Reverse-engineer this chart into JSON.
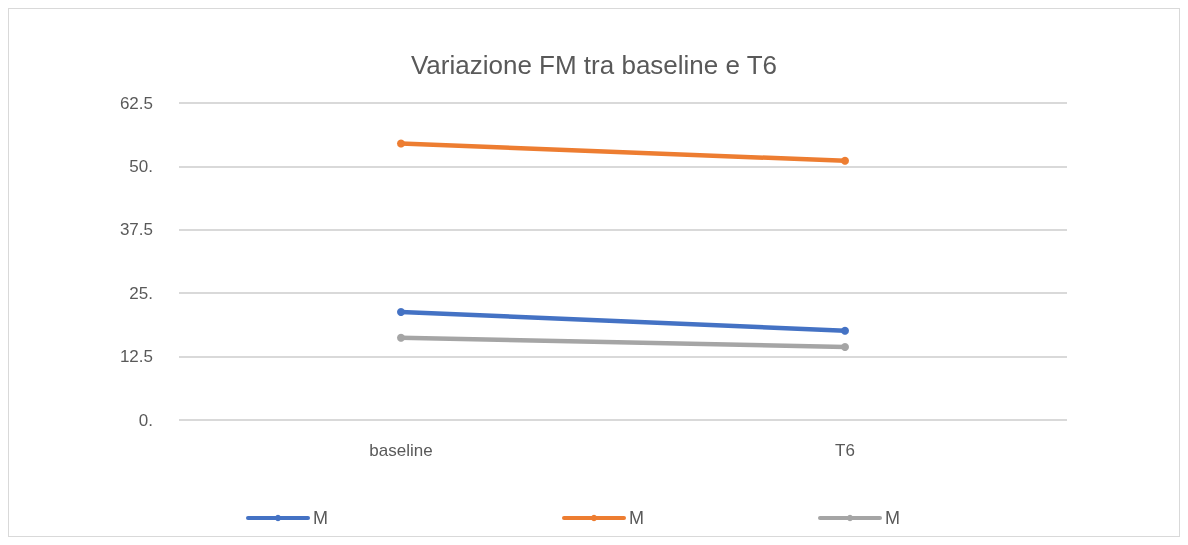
{
  "chart_data": {
    "type": "line",
    "title": "Variazione FM tra baseline e T6",
    "categories": [
      "baseline",
      "T6"
    ],
    "series": [
      {
        "name": "M",
        "color": "#4472c4",
        "values": [
          21.3,
          17.6
        ]
      },
      {
        "name": "M",
        "color": "#ed7d31",
        "values": [
          54.5,
          51.1
        ]
      },
      {
        "name": "M",
        "color": "#a5a5a5",
        "values": [
          16.2,
          14.4
        ]
      }
    ],
    "ylim": [
      0,
      62.5
    ],
    "yticks": [
      {
        "value": 0,
        "label": "0."
      },
      12.5,
      {
        "value": 25,
        "label": "25."
      },
      37.5,
      {
        "value": 50,
        "label": "50."
      },
      62.5
    ],
    "grid": "y",
    "legend": "bottom",
    "marker": "circle",
    "line_style": "solid"
  }
}
